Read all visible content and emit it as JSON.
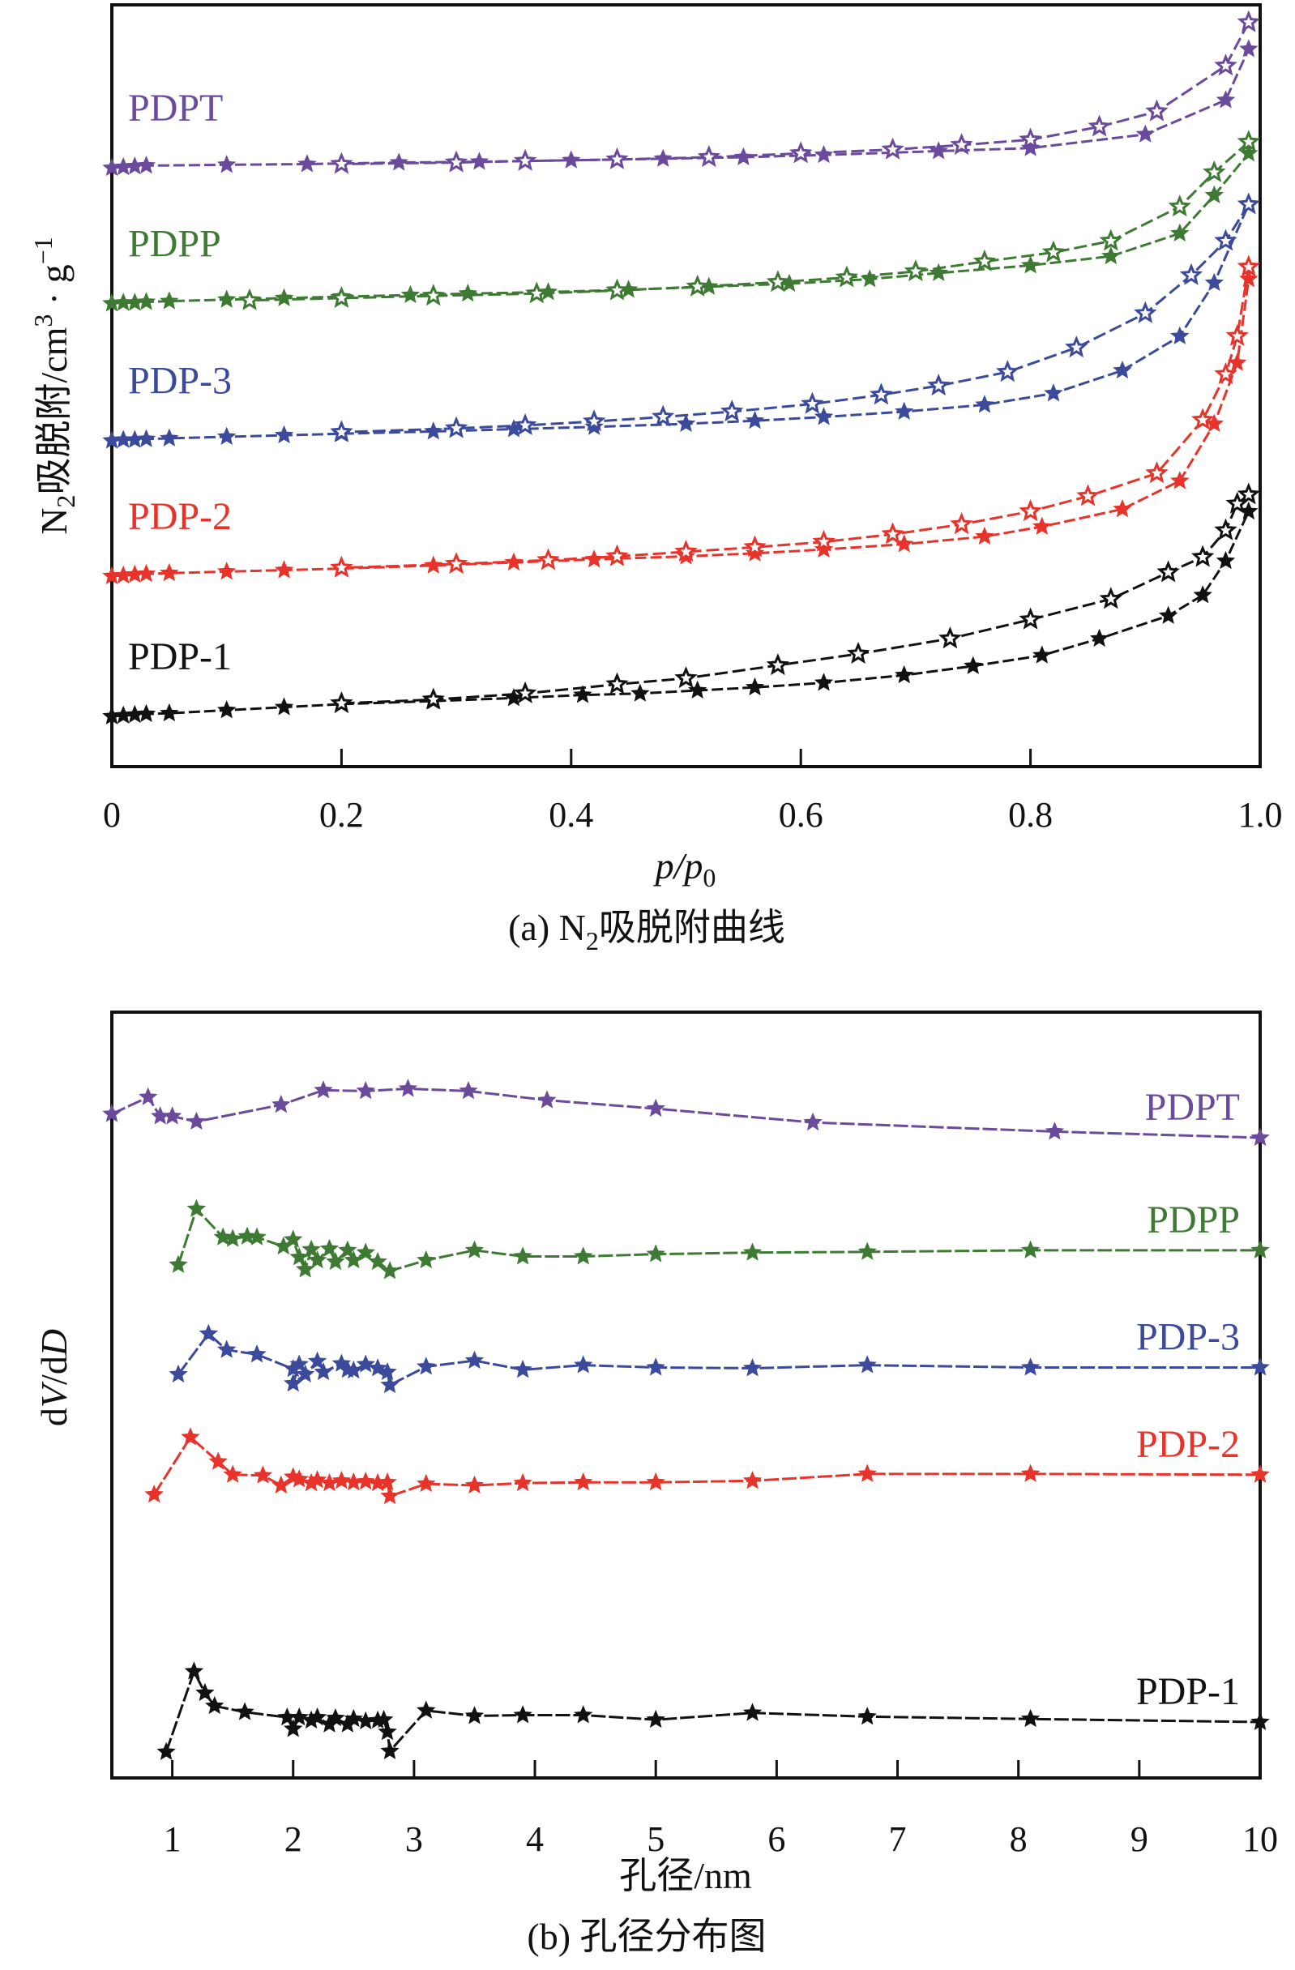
{
  "chart_data": [
    {
      "type": "line",
      "panel": "a",
      "caption": "(a) N₂吸脱附曲线",
      "caption_parts": {
        "prefix": "(a) N",
        "sub": "2",
        "suffix": "吸脱附曲线"
      },
      "xlabel": "p/p0",
      "xlabel_parts": {
        "main": "p/p",
        "sub": "0"
      },
      "ylabel": "N₂吸脱附/cm³·g⁻¹",
      "ylabel_parts": {
        "a": "N",
        "a_sub": "2",
        "b": "吸脱附/cm",
        "b_sup": "3",
        "c": " · g",
        "c_sup": "−1"
      },
      "xlim": [
        0,
        1.0
      ],
      "ylim": [
        0,
        100
      ],
      "y_units": "arbitrary (curves vertically offset, no y ticks)",
      "xticks": [
        0,
        0.2,
        0.4,
        0.6,
        0.8,
        1.0
      ],
      "xtick_labels": [
        "0",
        "0.2",
        "0.4",
        "0.6",
        "0.8",
        "1.0"
      ],
      "grid": false,
      "series": [
        {
          "name": "PDPT",
          "color": "#6b4a9b",
          "adsorption": {
            "x": [
              0.0,
              0.01,
              0.02,
              0.03,
              0.1,
              0.17,
              0.25,
              0.32,
              0.4,
              0.48,
              0.55,
              0.62,
              0.72,
              0.8,
              0.9,
              0.97,
              0.99
            ],
            "y": [
              78.6,
              78.7,
              78.8,
              78.9,
              79.0,
              79.1,
              79.3,
              79.4,
              79.6,
              79.8,
              80.0,
              80.3,
              80.8,
              81.2,
              83.0,
              87.5,
              94.2
            ]
          },
          "desorption": {
            "x": [
              0.99,
              0.97,
              0.91,
              0.86,
              0.8,
              0.74,
              0.68,
              0.6,
              0.52,
              0.44,
              0.36,
              0.3,
              0.2
            ],
            "y": [
              97.7,
              92.0,
              86.0,
              84.0,
              82.3,
              81.6,
              81.0,
              80.5,
              80.0,
              79.7,
              79.5,
              79.3,
              79.1
            ]
          },
          "label_position": "top-left"
        },
        {
          "name": "PDPP",
          "color": "#3f7a35",
          "adsorption": {
            "x": [
              0.0,
              0.01,
              0.02,
              0.03,
              0.05,
              0.1,
              0.15,
              0.2,
              0.26,
              0.31,
              0.38,
              0.45,
              0.52,
              0.59,
              0.66,
              0.72,
              0.8,
              0.87,
              0.93,
              0.96,
              0.99
            ],
            "y": [
              60.8,
              60.9,
              60.9,
              61.0,
              61.1,
              61.3,
              61.5,
              61.7,
              61.9,
              62.1,
              62.3,
              62.6,
              63.0,
              63.4,
              64.0,
              64.8,
              65.8,
              67.0,
              70.0,
              75.0,
              80.5
            ]
          },
          "desorption": {
            "x": [
              0.99,
              0.96,
              0.93,
              0.87,
              0.82,
              0.76,
              0.7,
              0.64,
              0.58,
              0.51,
              0.44,
              0.37,
              0.28,
              0.2,
              0.12
            ],
            "y": [
              82.0,
              78.0,
              73.5,
              69.0,
              67.5,
              66.3,
              65.0,
              64.2,
              63.6,
              63.0,
              62.5,
              62.1,
              61.8,
              61.5,
              61.2
            ]
          },
          "label_position": "left"
        },
        {
          "name": "PDP-3",
          "color": "#3b4a9a",
          "adsorption": {
            "x": [
              0.0,
              0.01,
              0.02,
              0.03,
              0.05,
              0.1,
              0.15,
              0.2,
              0.28,
              0.35,
              0.42,
              0.5,
              0.56,
              0.62,
              0.69,
              0.76,
              0.82,
              0.88,
              0.93,
              0.96,
              0.99
            ],
            "y": [
              42.8,
              42.9,
              42.9,
              43.0,
              43.1,
              43.3,
              43.5,
              43.7,
              44.0,
              44.3,
              44.6,
              45.0,
              45.4,
              45.9,
              46.6,
              47.5,
              49.0,
              52.0,
              56.5,
              63.5,
              73.8
            ]
          },
          "desorption": {
            "x": [
              0.99,
              0.97,
              0.94,
              0.9,
              0.84,
              0.78,
              0.72,
              0.67,
              0.61,
              0.54,
              0.48,
              0.42,
              0.36,
              0.3,
              0.2
            ],
            "y": [
              73.8,
              69.0,
              64.5,
              59.5,
              55.0,
              51.8,
              50.0,
              48.8,
              47.6,
              46.6,
              45.9,
              45.3,
              44.8,
              44.4,
              43.9
            ]
          },
          "label_position": "left"
        },
        {
          "name": "PDP-2",
          "color": "#e8332a",
          "adsorption": {
            "x": [
              0.0,
              0.01,
              0.02,
              0.03,
              0.05,
              0.1,
              0.15,
              0.2,
              0.28,
              0.35,
              0.42,
              0.5,
              0.56,
              0.62,
              0.69,
              0.76,
              0.81,
              0.88,
              0.93,
              0.96,
              0.98,
              0.99
            ],
            "y": [
              25.0,
              25.1,
              25.2,
              25.3,
              25.4,
              25.6,
              25.8,
              26.0,
              26.4,
              26.8,
              27.2,
              27.6,
              28.0,
              28.5,
              29.2,
              30.2,
              31.5,
              33.8,
              37.5,
              45.0,
              53.0,
              64.0
            ]
          },
          "desorption": {
            "x": [
              0.99,
              0.98,
              0.97,
              0.95,
              0.91,
              0.85,
              0.8,
              0.74,
              0.68,
              0.62,
              0.56,
              0.5,
              0.44,
              0.38,
              0.3,
              0.2
            ],
            "y": [
              65.6,
              56.5,
              51.5,
              45.5,
              38.5,
              35.5,
              33.5,
              31.8,
              30.5,
              29.5,
              28.8,
              28.2,
              27.6,
              27.1,
              26.6,
              26.1
            ]
          },
          "label_position": "left"
        },
        {
          "name": "PDP-1",
          "color": "#111111",
          "adsorption": {
            "x": [
              0.0,
              0.01,
              0.02,
              0.03,
              0.05,
              0.1,
              0.15,
              0.2,
              0.28,
              0.35,
              0.41,
              0.46,
              0.51,
              0.56,
              0.62,
              0.69,
              0.75,
              0.81,
              0.86,
              0.92,
              0.95,
              0.97,
              0.99
            ],
            "y": [
              6.6,
              6.7,
              6.8,
              6.9,
              7.0,
              7.4,
              7.8,
              8.2,
              8.6,
              9.0,
              9.4,
              9.6,
              10.0,
              10.4,
              11.0,
              12.0,
              13.2,
              14.6,
              16.8,
              19.8,
              22.5,
              27.0,
              33.5
            ]
          },
          "desorption": {
            "x": [
              0.99,
              0.98,
              0.97,
              0.95,
              0.92,
              0.87,
              0.8,
              0.73,
              0.65,
              0.58,
              0.5,
              0.44,
              0.36,
              0.28,
              0.2
            ],
            "y": [
              35.7,
              34.5,
              31.0,
              27.5,
              25.5,
              22.0,
              19.3,
              16.8,
              14.8,
              13.3,
              11.6,
              10.8,
              9.6,
              8.8,
              8.3
            ]
          },
          "label_position": "left"
        }
      ]
    },
    {
      "type": "line",
      "panel": "b",
      "caption": "(b) 孔径分布图",
      "xlabel": "孔径/nm",
      "ylabel": "dV/dD",
      "ylabel_parts": {
        "a": "d",
        "b": "V",
        "c": "/d",
        "d": "D"
      },
      "xlim": [
        0.5,
        10
      ],
      "ylim": [
        0,
        100
      ],
      "y_units": "arbitrary (curves vertically offset, no y ticks)",
      "xticks": [
        1,
        2,
        3,
        4,
        5,
        6,
        7,
        8,
        9,
        10
      ],
      "xtick_labels": [
        "1",
        "2",
        "3",
        "4",
        "5",
        "6",
        "7",
        "8",
        "9",
        "10"
      ],
      "grid": false,
      "series": [
        {
          "name": "PDPT",
          "color": "#6b4a9b",
          "x": [
            0.5,
            0.8,
            0.9,
            1.0,
            1.2,
            1.9,
            2.25,
            2.6,
            2.95,
            3.45,
            4.1,
            5.0,
            6.3,
            8.3,
            10.0
          ],
          "y": [
            86.7,
            88.9,
            86.4,
            86.4,
            85.7,
            87.9,
            89.8,
            89.7,
            90.0,
            89.7,
            88.5,
            87.4,
            85.6,
            84.4,
            83.6
          ]
        },
        {
          "name": "PDPP",
          "color": "#3f7a35",
          "x": [
            1.05,
            1.2,
            1.42,
            1.5,
            1.62,
            1.7,
            1.92,
            2.0,
            2.05,
            2.1,
            2.15,
            2.2,
            2.3,
            2.35,
            2.45,
            2.5,
            2.6,
            2.7,
            2.8,
            3.1,
            3.5,
            3.9,
            4.4,
            5.0,
            5.8,
            6.75,
            8.1,
            10.0
          ],
          "y": [
            67.0,
            74.3,
            70.6,
            70.4,
            70.7,
            70.6,
            69.4,
            70.3,
            68.0,
            66.4,
            69.0,
            67.6,
            69.1,
            67.4,
            68.9,
            67.6,
            68.6,
            67.4,
            66.2,
            67.6,
            68.9,
            68.1,
            68.1,
            68.4,
            68.6,
            68.7,
            68.9,
            68.9
          ]
        },
        {
          "name": "PDP-3",
          "color": "#3b4a9a",
          "x": [
            1.05,
            1.3,
            1.45,
            1.7,
            2.0,
            2.05,
            2.0,
            2.1,
            2.2,
            2.25,
            2.4,
            2.45,
            2.5,
            2.6,
            2.7,
            2.78,
            2.8,
            3.1,
            3.5,
            3.9,
            4.4,
            5.0,
            5.8,
            6.75,
            8.1,
            10.0
          ],
          "y": [
            52.7,
            58.0,
            55.9,
            55.3,
            53.4,
            54.0,
            51.5,
            52.7,
            54.4,
            53.0,
            54.1,
            53.3,
            53.2,
            54.0,
            53.5,
            53.0,
            51.3,
            53.7,
            54.5,
            53.3,
            53.9,
            53.6,
            53.5,
            53.9,
            53.6,
            53.6
          ]
        },
        {
          "name": "PDP-2",
          "color": "#e8332a",
          "x": [
            0.85,
            1.15,
            1.38,
            1.5,
            1.75,
            1.9,
            2.0,
            2.05,
            2.15,
            2.2,
            2.3,
            2.4,
            2.5,
            2.6,
            2.7,
            2.78,
            2.8,
            3.1,
            3.5,
            3.9,
            4.4,
            5.0,
            5.8,
            6.75,
            8.1,
            10.0
          ],
          "y": [
            37.0,
            44.5,
            41.3,
            39.6,
            39.5,
            38.2,
            39.3,
            39.0,
            38.5,
            38.9,
            38.5,
            38.8,
            38.6,
            38.7,
            38.5,
            38.6,
            36.8,
            38.4,
            38.2,
            38.5,
            38.6,
            38.6,
            38.8,
            39.7,
            39.7,
            39.6
          ]
        },
        {
          "name": "PDP-1",
          "color": "#111111",
          "x": [
            0.95,
            1.18,
            1.27,
            1.35,
            1.6,
            1.95,
            2.0,
            2.05,
            2.15,
            2.2,
            2.3,
            2.35,
            2.45,
            2.5,
            2.6,
            2.7,
            2.75,
            2.78,
            2.8,
            3.1,
            3.5,
            3.9,
            4.4,
            5.0,
            5.8,
            6.75,
            8.1,
            10.0
          ],
          "y": [
            3.4,
            13.9,
            11.1,
            9.4,
            8.6,
            7.9,
            6.4,
            7.9,
            7.5,
            7.9,
            7.0,
            7.8,
            7.0,
            7.7,
            7.4,
            7.5,
            7.6,
            6.0,
            3.5,
            8.8,
            8.1,
            8.2,
            8.2,
            7.6,
            8.5,
            8.0,
            7.7,
            7.3
          ]
        }
      ]
    }
  ]
}
